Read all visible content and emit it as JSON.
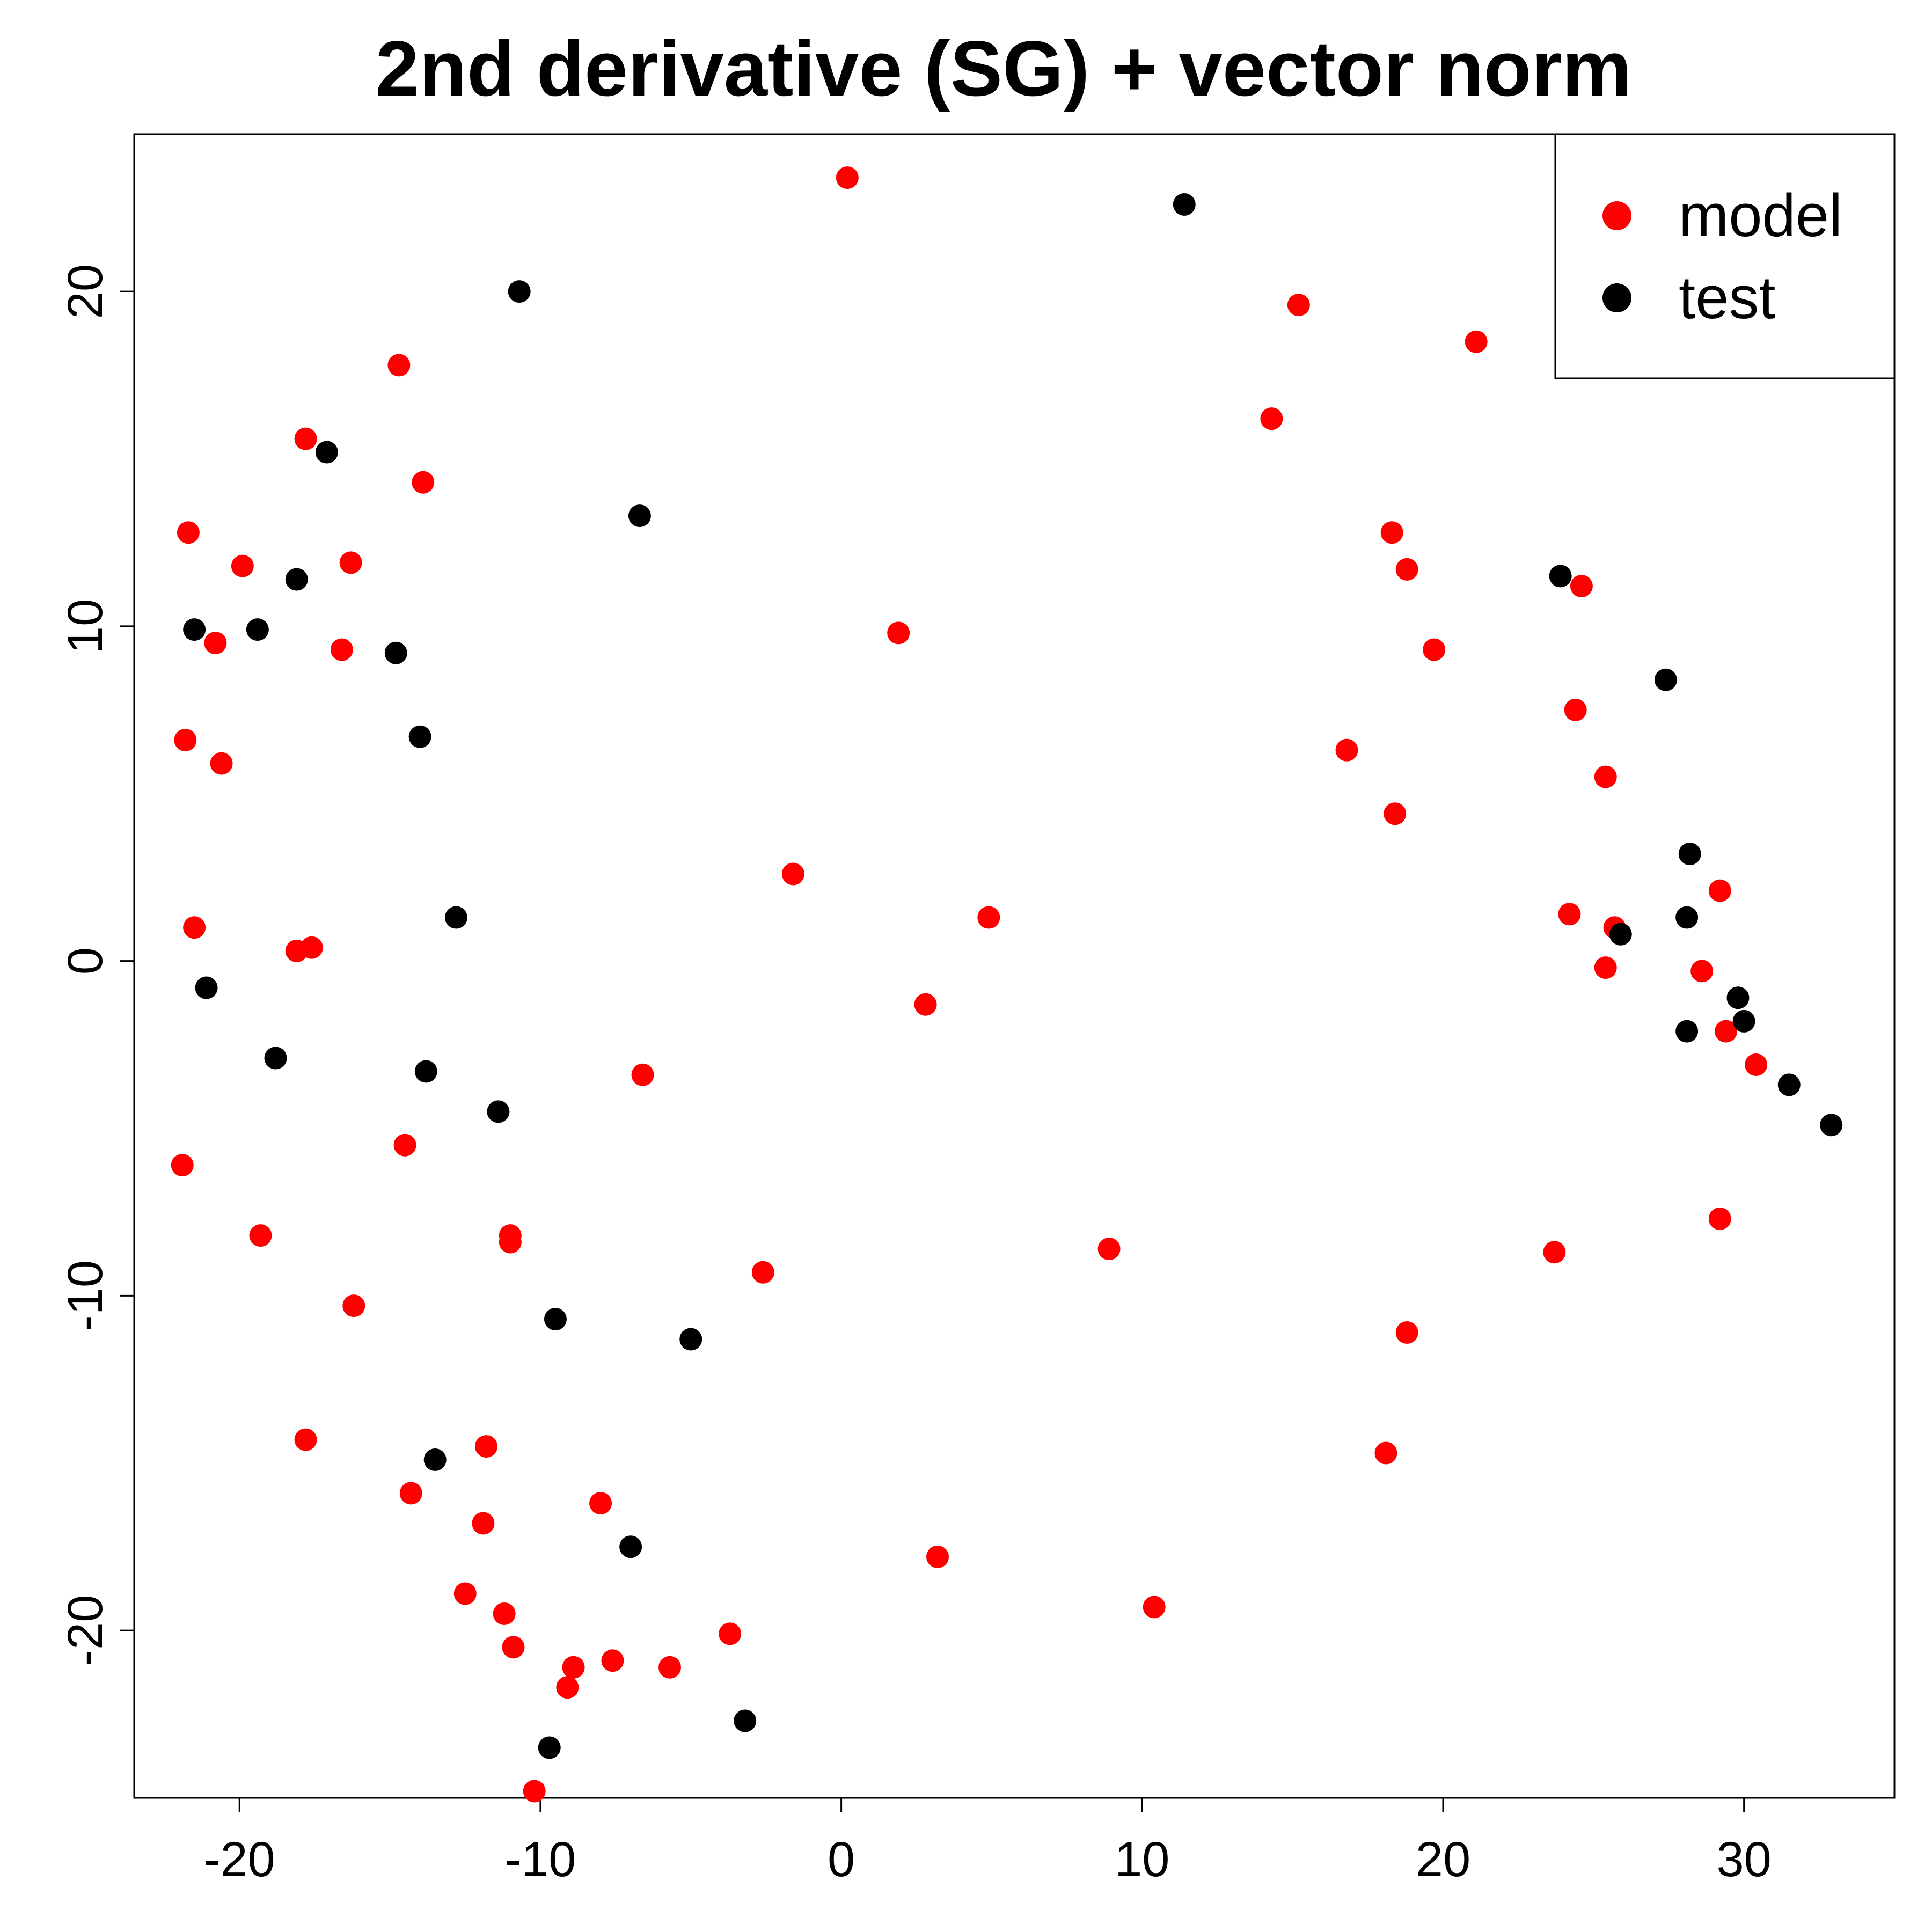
{
  "chart_data": {
    "type": "scatter",
    "title": "2nd derivative (SG) + vector norm",
    "xlabel": "",
    "ylabel": "",
    "xlim": [
      -23.5,
      35
    ],
    "ylim": [
      -25,
      24.7
    ],
    "xticks": [
      -20,
      -10,
      0,
      10,
      20,
      30
    ],
    "yticks": [
      -20,
      -10,
      0,
      10,
      20
    ],
    "xtick_labels": [
      "-20",
      "-10",
      "0",
      "10",
      "20",
      "30"
    ],
    "ytick_labels": [
      "-20",
      "-10",
      "0",
      "10",
      "20"
    ],
    "grid": false,
    "legend_position": "top-right",
    "series": [
      {
        "name": "model",
        "color": "#ff0000",
        "points": [
          [
            0.2,
            23.4
          ],
          [
            15.2,
            19.6
          ],
          [
            21.1,
            18.5
          ],
          [
            -14.7,
            17.8
          ],
          [
            14.3,
            16.2
          ],
          [
            -17.8,
            15.6
          ],
          [
            -13.9,
            14.3
          ],
          [
            -21.7,
            12.8
          ],
          [
            18.3,
            12.8
          ],
          [
            -19.9,
            11.8
          ],
          [
            -16.3,
            11.9
          ],
          [
            18.8,
            11.7
          ],
          [
            24.6,
            11.2
          ],
          [
            1.9,
            9.8
          ],
          [
            -20.8,
            9.5
          ],
          [
            -16.6,
            9.3
          ],
          [
            19.7,
            9.3
          ],
          [
            24.4,
            7.5
          ],
          [
            -21.8,
            6.6
          ],
          [
            16.8,
            6.3
          ],
          [
            -20.6,
            5.9
          ],
          [
            25.4,
            5.5
          ],
          [
            18.4,
            4.4
          ],
          [
            -1.6,
            2.6
          ],
          [
            29.2,
            2.1
          ],
          [
            24.2,
            1.4
          ],
          [
            4.9,
            1.3
          ],
          [
            25.7,
            1.0
          ],
          [
            -21.5,
            1.0
          ],
          [
            -17.6,
            0.4
          ],
          [
            -18.1,
            0.3
          ],
          [
            25.4,
            -0.2
          ],
          [
            28.6,
            -0.3
          ],
          [
            2.8,
            -1.3
          ],
          [
            29.4,
            -2.1
          ],
          [
            30.4,
            -3.1
          ],
          [
            -6.6,
            -3.4
          ],
          [
            -14.5,
            -5.5
          ],
          [
            -21.9,
            -6.1
          ],
          [
            29.2,
            -7.7
          ],
          [
            -19.3,
            -8.2
          ],
          [
            -11.0,
            -8.2
          ],
          [
            -11.0,
            -8.4
          ],
          [
            8.9,
            -8.6
          ],
          [
            23.7,
            -8.7
          ],
          [
            -2.6,
            -9.3
          ],
          [
            -16.2,
            -10.3
          ],
          [
            18.8,
            -11.1
          ],
          [
            -17.8,
            -14.3
          ],
          [
            -11.8,
            -14.5
          ],
          [
            18.1,
            -14.7
          ],
          [
            -14.3,
            -15.9
          ],
          [
            -8.0,
            -16.2
          ],
          [
            -11.9,
            -16.8
          ],
          [
            3.2,
            -17.8
          ],
          [
            -12.5,
            -18.9
          ],
          [
            -11.2,
            -19.5
          ],
          [
            10.4,
            -19.3
          ],
          [
            -3.7,
            -20.1
          ],
          [
            -10.9,
            -20.5
          ],
          [
            -7.6,
            -20.9
          ],
          [
            -8.9,
            -21.1
          ],
          [
            -5.7,
            -21.1
          ],
          [
            -9.1,
            -21.7
          ],
          [
            -10.2,
            -24.8
          ]
        ]
      },
      {
        "name": "test",
        "color": "#000000",
        "points": [
          [
            11.4,
            22.6
          ],
          [
            -10.7,
            20.0
          ],
          [
            -17.1,
            15.2
          ],
          [
            -6.7,
            13.3
          ],
          [
            23.9,
            11.5
          ],
          [
            -18.1,
            11.4
          ],
          [
            -21.5,
            9.9
          ],
          [
            -19.4,
            9.9
          ],
          [
            -14.8,
            9.2
          ],
          [
            27.4,
            8.4
          ],
          [
            -14.0,
            6.7
          ],
          [
            28.2,
            3.2
          ],
          [
            -12.8,
            1.3
          ],
          [
            28.1,
            1.3
          ],
          [
            25.9,
            0.8
          ],
          [
            -21.1,
            -0.8
          ],
          [
            29.8,
            -1.1
          ],
          [
            30.0,
            -1.8
          ],
          [
            28.1,
            -2.1
          ],
          [
            -18.8,
            -2.9
          ],
          [
            -13.8,
            -3.3
          ],
          [
            31.5,
            -3.7
          ],
          [
            -11.4,
            -4.5
          ],
          [
            32.9,
            -4.9
          ],
          [
            -9.5,
            -10.7
          ],
          [
            -5.0,
            -11.3
          ],
          [
            -13.5,
            -14.9
          ],
          [
            -7.0,
            -17.5
          ],
          [
            -3.2,
            -22.7
          ],
          [
            -9.7,
            -23.5
          ]
        ]
      }
    ]
  }
}
